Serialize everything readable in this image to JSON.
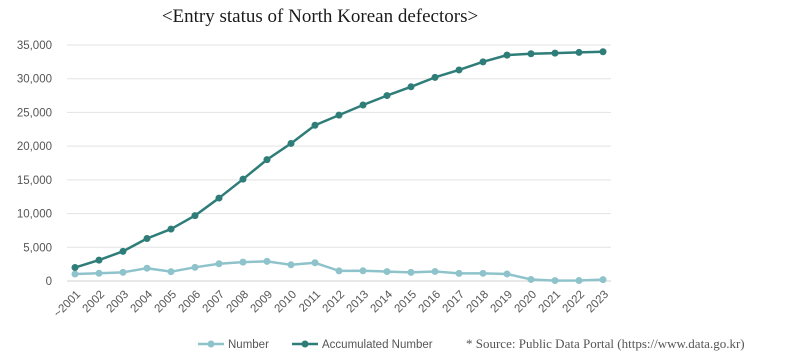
{
  "title": "<Entry status of North Korean defectors>",
  "source": "* Source: Public Data Portal (https://www.data.go.kr)",
  "chart_data": {
    "type": "line",
    "title": "<Entry status of North Korean defectors>",
    "xlabel": "",
    "ylabel": "",
    "categories": [
      "~2001",
      "2002",
      "2003",
      "2004",
      "2005",
      "2006",
      "2007",
      "2008",
      "2009",
      "2010",
      "2011",
      "2012",
      "2013",
      "2014",
      "2015",
      "2016",
      "2017",
      "2018",
      "2019",
      "2020",
      "2021",
      "2022",
      "2023"
    ],
    "ylim": [
      0,
      35000
    ],
    "yticks": [
      0,
      5000,
      10000,
      15000,
      20000,
      25000,
      30000,
      35000
    ],
    "ytick_labels": [
      "0",
      "5,000",
      "10,000",
      "15,000",
      "20,000",
      "25,000",
      "30,000",
      "35,000"
    ],
    "grid": true,
    "legend_position": "bottom",
    "series": [
      {
        "name": "Number",
        "color": "#8fc3cc",
        "values": [
          1043,
          1142,
          1285,
          1898,
          1384,
          2028,
          2554,
          2803,
          2914,
          2402,
          2706,
          1502,
          1514,
          1397,
          1275,
          1418,
          1127,
          1137,
          1047,
          229,
          63,
          67,
          196
        ]
      },
      {
        "name": "Accumulated Number",
        "color": "#2e7d78",
        "values": [
          2000,
          3100,
          4400,
          6300,
          7700,
          9700,
          12300,
          15100,
          18000,
          20400,
          23100,
          24600,
          26100,
          27500,
          28800,
          30200,
          31300,
          32500,
          33500,
          33700,
          33800,
          33900,
          34000
        ]
      }
    ]
  }
}
